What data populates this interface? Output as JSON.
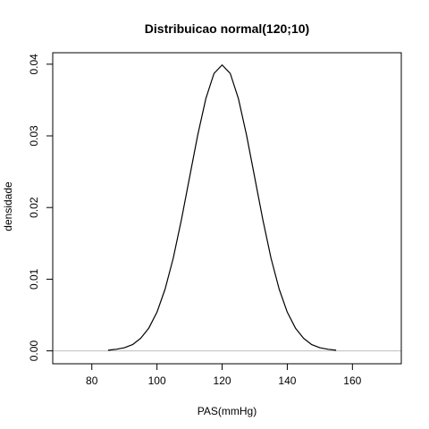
{
  "chart_data": {
    "type": "line",
    "title": "Distribuicao normal(120;10)",
    "xlabel": "PAS(mmHg)",
    "ylabel": "densidade",
    "xlim": [
      68,
      175
    ],
    "ylim": [
      -0.0018,
      0.0416
    ],
    "x_ticks": [
      80,
      100,
      120,
      140,
      160
    ],
    "x_tick_labels": [
      "80",
      "100",
      "120",
      "140",
      "160"
    ],
    "y_ticks": [
      0.0,
      0.01,
      0.02,
      0.03,
      0.04
    ],
    "y_tick_labels": [
      "0.00",
      "0.01",
      "0.02",
      "0.03",
      "0.04"
    ],
    "grid": false,
    "reference_lines": [
      {
        "axis": "y",
        "value": 0,
        "color": "#bebebe"
      }
    ],
    "series": [
      {
        "color": "#000000",
        "x": [
          85,
          87.5,
          90,
          92.5,
          95,
          97.5,
          100,
          102.5,
          105,
          107.5,
          110,
          112.5,
          115,
          117.5,
          120,
          122.5,
          125,
          127.5,
          130,
          132.5,
          135,
          137.5,
          140,
          142.5,
          145,
          147.5,
          150,
          152.5,
          155
        ],
        "y": [
          9e-05,
          0.00022,
          0.00044,
          0.00087,
          0.00175,
          0.00318,
          0.0054,
          0.00863,
          0.01295,
          0.0183,
          0.0242,
          0.0301,
          0.0352,
          0.0387,
          0.0399,
          0.0387,
          0.0352,
          0.0301,
          0.0242,
          0.0183,
          0.01295,
          0.00863,
          0.0054,
          0.00318,
          0.00175,
          0.00087,
          0.00044,
          0.00022,
          9e-05
        ]
      }
    ]
  }
}
